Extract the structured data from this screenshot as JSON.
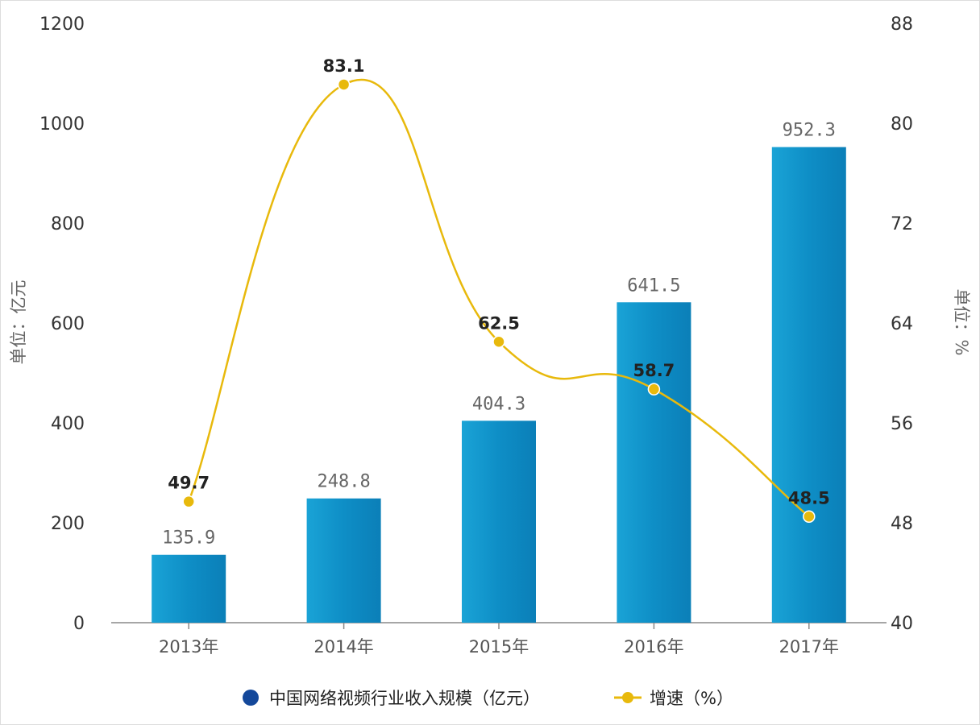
{
  "chart_data": {
    "type": "bar",
    "categories": [
      "2013年",
      "2014年",
      "2015年",
      "2016年",
      "2017年"
    ],
    "series": [
      {
        "name": "中国网络视频行业收入规模（亿元）",
        "type": "bar",
        "axis": "left",
        "color": "#0e8ec6",
        "values": [
          135.9,
          248.8,
          404.3,
          641.5,
          952.3
        ],
        "labels": [
          "135.9",
          "248.8",
          "404.3",
          "641.5",
          "952.3"
        ]
      },
      {
        "name": "增速（%）",
        "type": "line",
        "axis": "right",
        "color": "#e8b90c",
        "values": [
          49.7,
          83.1,
          62.5,
          58.7,
          48.5
        ],
        "labels": [
          "49.7",
          "83.1",
          "62.5",
          "58.7",
          "48.5"
        ]
      }
    ],
    "y_left": {
      "label": "单位：亿元",
      "ylim": [
        0,
        1200
      ],
      "ticks": [
        "0",
        "200",
        "400",
        "600",
        "800",
        "1000",
        "1200"
      ]
    },
    "y_right": {
      "label": "单位：%",
      "ylim": [
        40,
        88
      ],
      "ticks": [
        "40",
        "48",
        "56",
        "64",
        "72",
        "80",
        "88"
      ]
    },
    "grid": false,
    "legend": "bottom"
  },
  "legend": {
    "bar_label": "中国网络视频行业收入规模（亿元）",
    "line_label": "增速（%）"
  }
}
